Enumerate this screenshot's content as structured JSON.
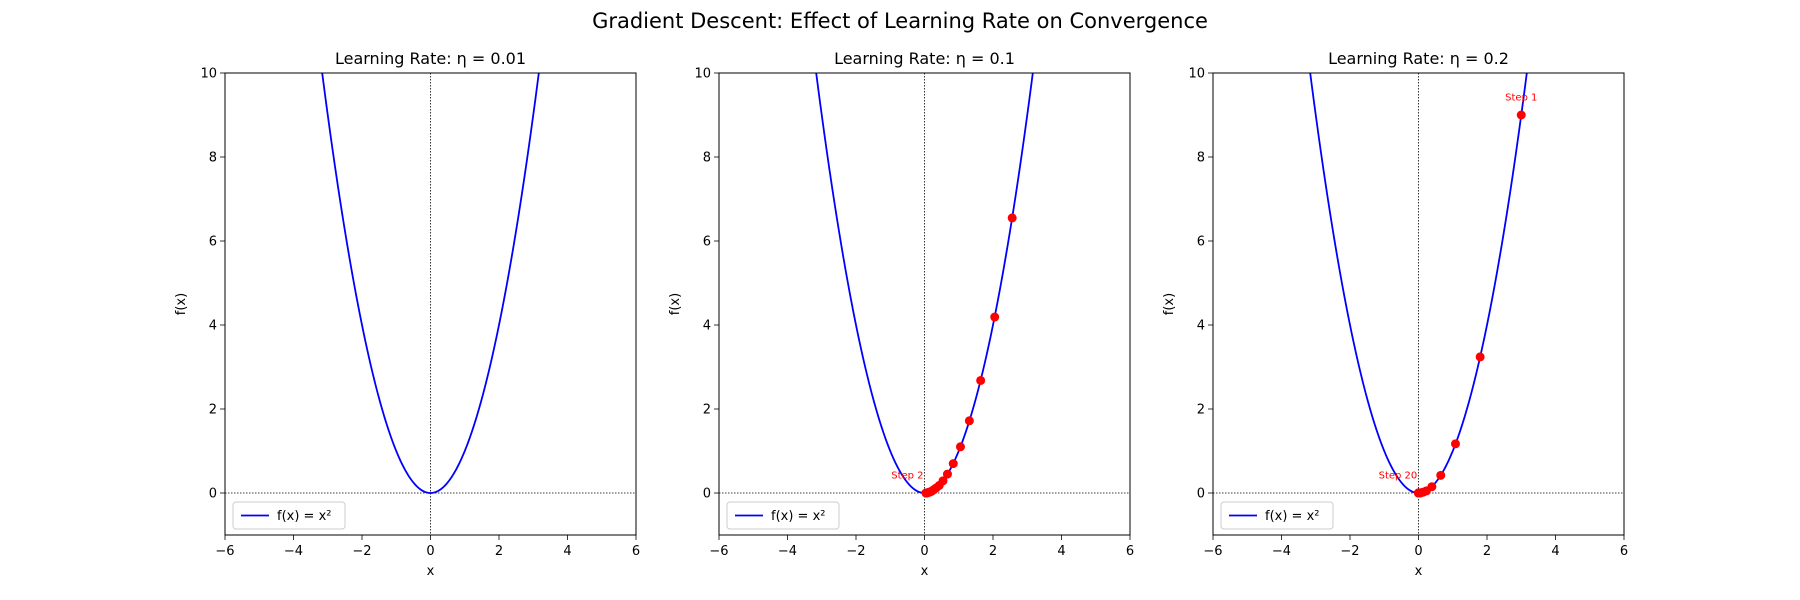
{
  "suptitle": "Gradient Descent: Effect of Learning Rate on Convergence",
  "chart_data": [
    {
      "type": "line",
      "title": "Learning Rate: η = 0.01",
      "xlabel": "x",
      "ylabel": "f(x)",
      "xlim": [
        -6,
        6
      ],
      "ylim": [
        -1,
        10
      ],
      "xticks": [
        -6,
        -4,
        -2,
        0,
        2,
        4,
        6
      ],
      "yticks": [
        0,
        2,
        4,
        6,
        8,
        10
      ],
      "reference_lines": {
        "x": 0,
        "y": 0,
        "style": "dotted"
      },
      "curve": {
        "name": "f(x) = x²",
        "function": "x^2",
        "color": "#0000ff"
      },
      "legend": {
        "placement": "lower left",
        "entries": [
          "f(x) = x²"
        ]
      },
      "series": [],
      "annotations": []
    },
    {
      "type": "line",
      "title": "Learning Rate: η = 0.1",
      "xlabel": "x",
      "ylabel": "f(x)",
      "xlim": [
        -6,
        6
      ],
      "ylim": [
        -1,
        10
      ],
      "xticks": [
        -6,
        -4,
        -2,
        0,
        2,
        4,
        6
      ],
      "yticks": [
        0,
        2,
        4,
        6,
        8,
        10
      ],
      "reference_lines": {
        "x": 0,
        "y": 0,
        "style": "dotted"
      },
      "curve": {
        "name": "f(x) = x²",
        "function": "x^2",
        "color": "#0000ff"
      },
      "legend": {
        "placement": "lower left",
        "entries": [
          "f(x) = x²"
        ]
      },
      "series": [
        {
          "type": "scatter",
          "color": "#ff0000",
          "x": [
            2.56,
            2.05,
            1.64,
            1.31,
            1.05,
            0.84,
            0.67,
            0.54,
            0.43,
            0.34,
            0.27,
            0.22,
            0.18,
            0.14,
            0.11,
            0.09,
            0.07,
            0.06,
            0.05,
            0.04
          ],
          "y": [
            6.55,
            4.19,
            2.68,
            1.72,
            1.1,
            0.7,
            0.45,
            0.29,
            0.18,
            0.12,
            0.08,
            0.05,
            0.03,
            0.02,
            0.01,
            0.01,
            0.0,
            0.0,
            0.0,
            0.0
          ]
        }
      ],
      "annotations": [
        {
          "text": "Step 2",
          "x": -0.5,
          "y": 0.35
        }
      ]
    },
    {
      "type": "line",
      "title": "Learning Rate: η = 0.2",
      "xlabel": "x",
      "ylabel": "f(x)",
      "xlim": [
        -6,
        6
      ],
      "ylim": [
        -1,
        10
      ],
      "xticks": [
        -6,
        -4,
        -2,
        0,
        2,
        4,
        6
      ],
      "yticks": [
        0,
        2,
        4,
        6,
        8,
        10
      ],
      "reference_lines": {
        "x": 0,
        "y": 0,
        "style": "dotted"
      },
      "curve": {
        "name": "f(x) = x²",
        "function": "x^2",
        "color": "#0000ff"
      },
      "legend": {
        "placement": "lower left",
        "entries": [
          "f(x) = x²"
        ]
      },
      "series": [
        {
          "type": "scatter",
          "color": "#ff0000",
          "x": [
            3.0,
            1.8,
            1.08,
            0.65,
            0.39,
            0.23,
            0.14,
            0.08,
            0.05,
            0.03,
            0.02,
            0.01,
            0.01,
            0.0,
            0.0,
            0.0,
            0.0,
            0.0,
            0.0,
            0.0
          ],
          "y": [
            9.0,
            3.24,
            1.17,
            0.42,
            0.15,
            0.05,
            0.02,
            0.01,
            0.0,
            0.0,
            0.0,
            0.0,
            0.0,
            0.0,
            0.0,
            0.0,
            0.0,
            0.0,
            0.0,
            0.0
          ]
        }
      ],
      "annotations": [
        {
          "text": "Step 1",
          "x": 3.0,
          "y": 9.35
        },
        {
          "text": "Step 20",
          "x": -0.6,
          "y": 0.35
        }
      ]
    }
  ]
}
